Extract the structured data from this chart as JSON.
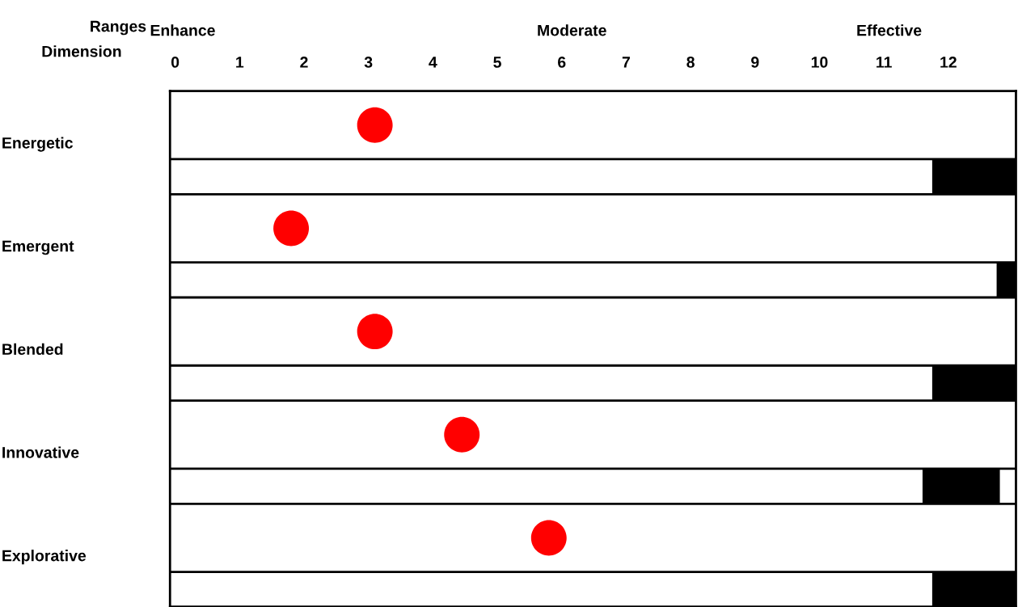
{
  "chart_data": {
    "type": "bar",
    "orientation": "horizontal",
    "xlabel": "Ranges",
    "ylabel": "Dimension",
    "categories": [
      "Energetic",
      "Emergent",
      "Blended",
      "Innovative",
      "Explorative"
    ],
    "xlim": [
      -0.08,
      13.05
    ],
    "xticks": [
      0,
      1,
      2,
      3,
      4,
      5,
      6,
      7,
      8,
      9,
      10,
      11,
      12
    ],
    "series": [
      {
        "type": "scatter",
        "color": "#ff0000",
        "values": [
          3.1,
          1.8,
          3.1,
          4.45,
          5.8
        ]
      },
      {
        "color": "#000000",
        "base": [
          11.75,
          12.75,
          11.75,
          11.6,
          11.75
        ],
        "values": [
          1.3,
          0.3,
          1.3,
          1.2,
          1.3
        ]
      }
    ],
    "annotations": [
      "Enhance",
      "Moderate",
      "Effective"
    ],
    "grid": false,
    "legend": false
  }
}
